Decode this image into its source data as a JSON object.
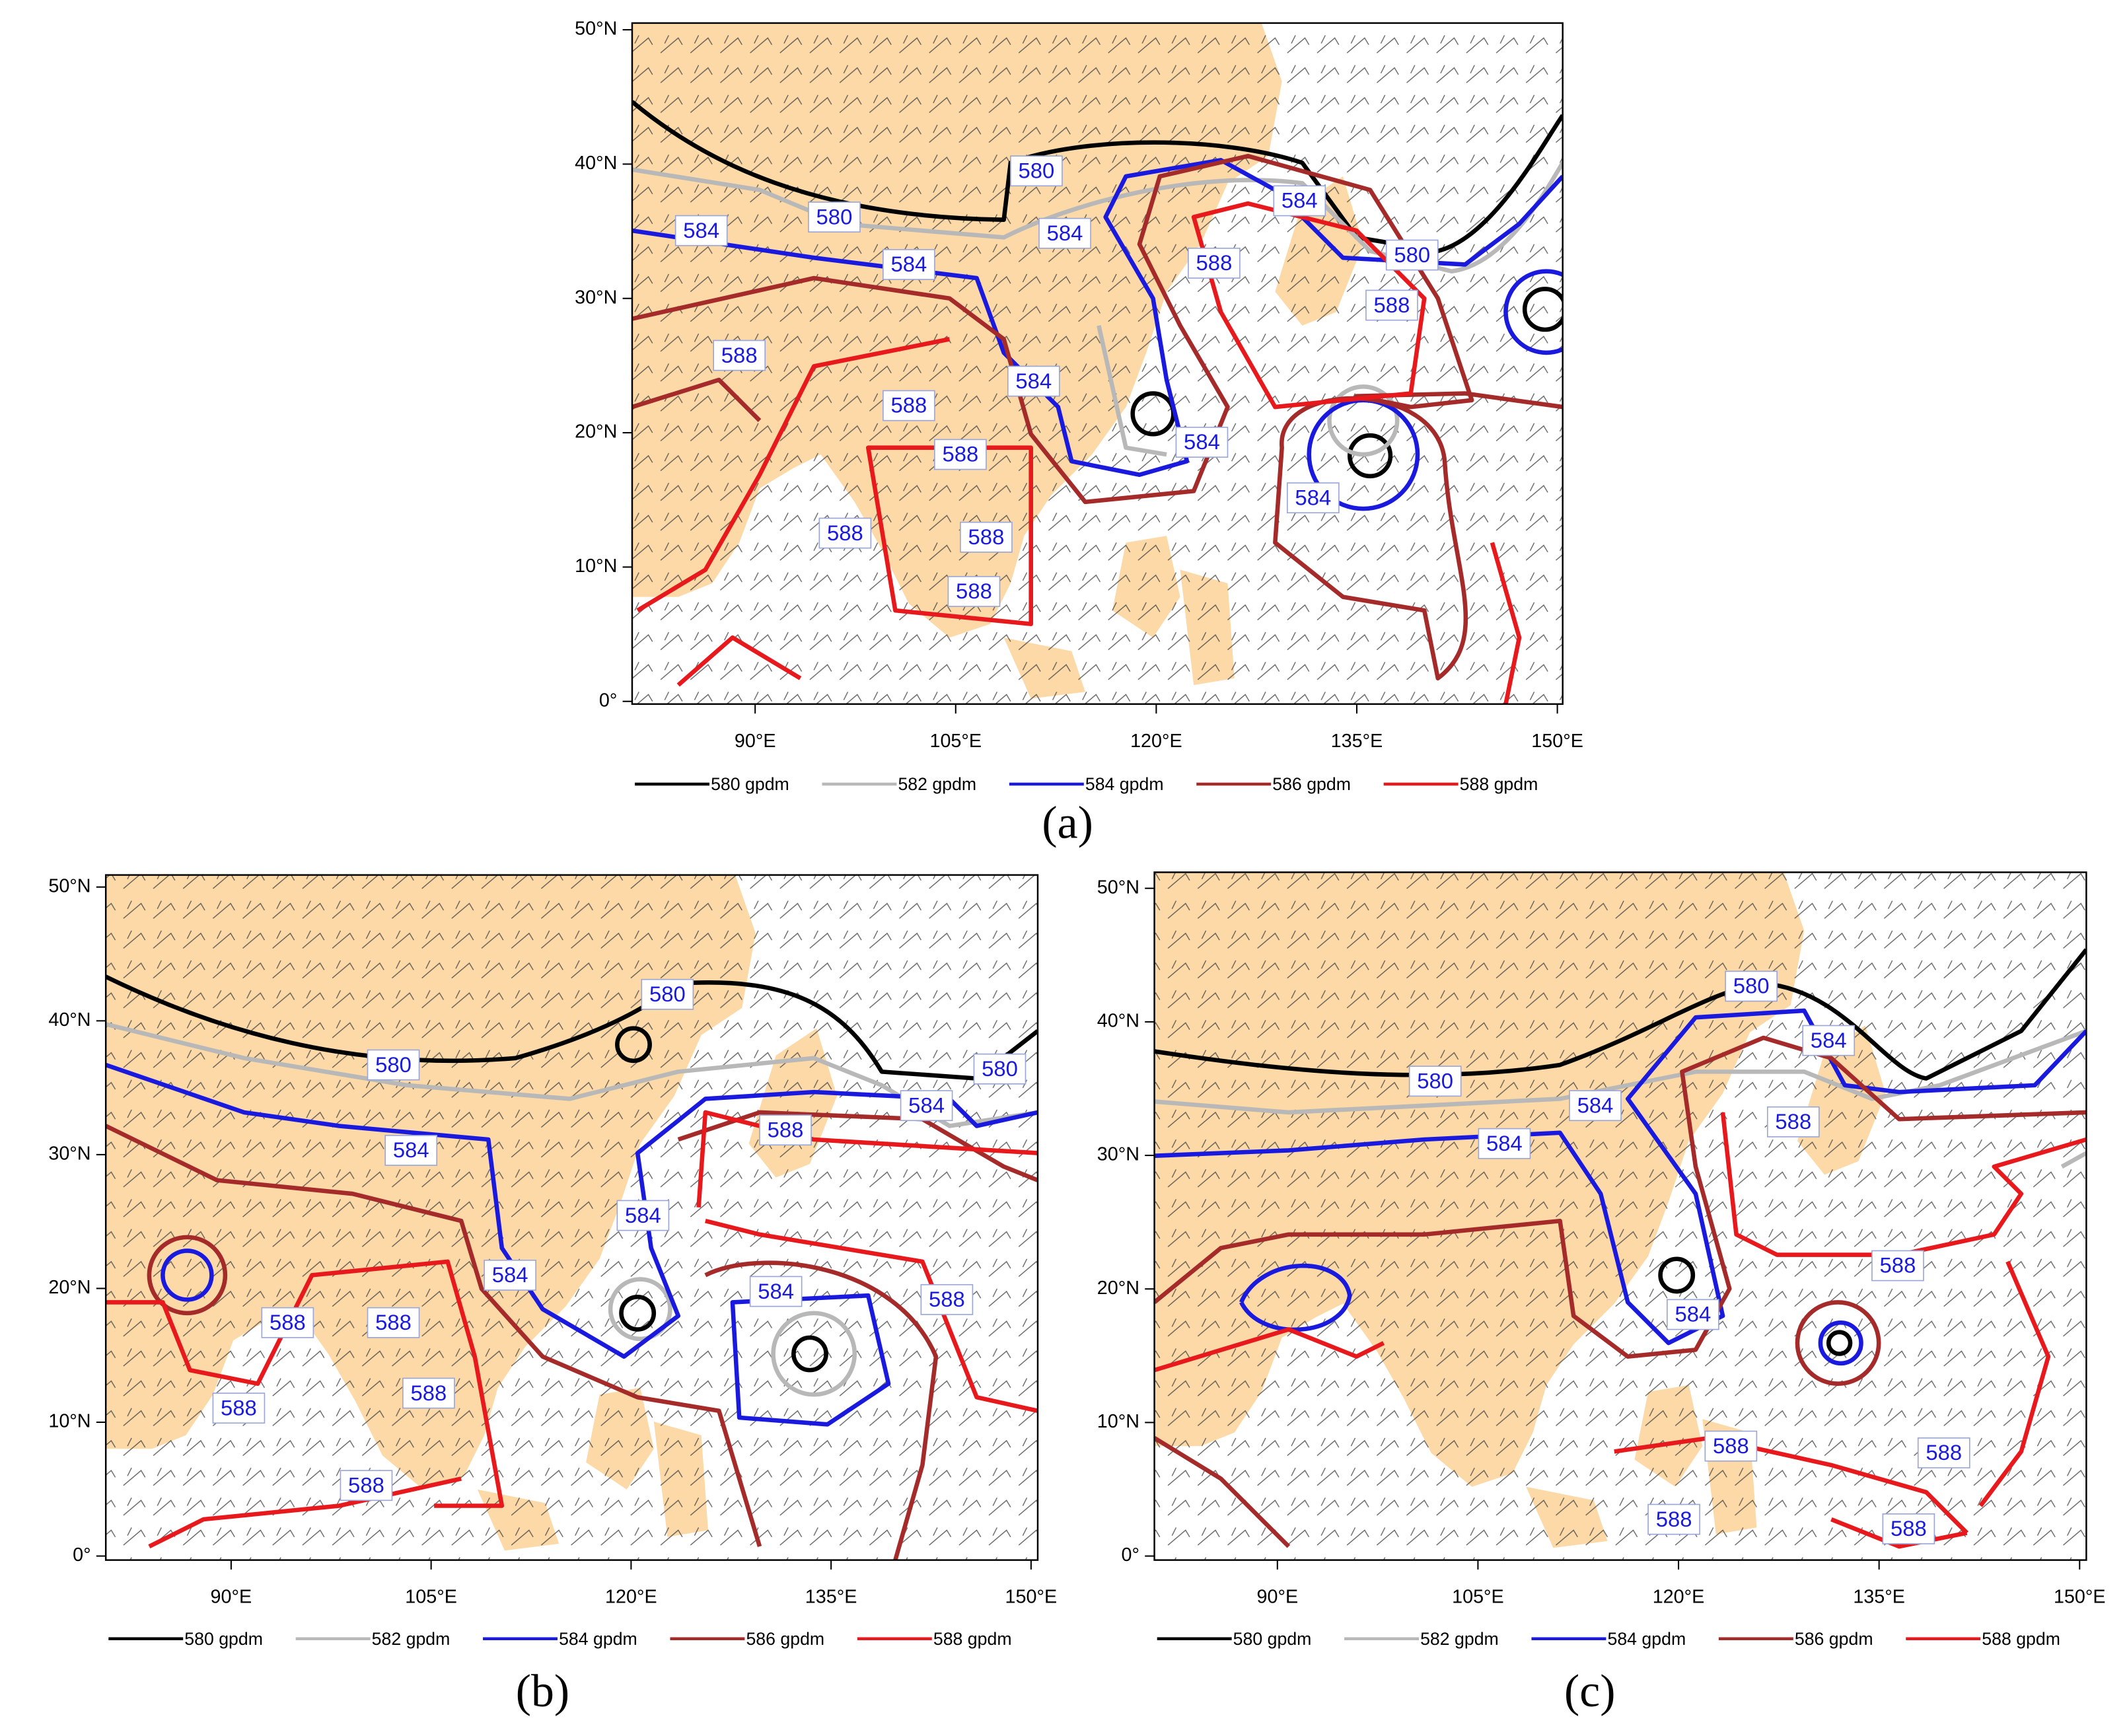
{
  "panels": [
    {
      "label": "(a)",
      "xlim": [
        80.8,
        150.4
      ],
      "ylim": [
        -0.2,
        50.5
      ],
      "xticks": [
        {
          "value": 90,
          "label": "90°E"
        },
        {
          "value": 105,
          "label": "105°E"
        },
        {
          "value": 120,
          "label": "120°E"
        },
        {
          "value": 135,
          "label": "135°E"
        },
        {
          "value": 150,
          "label": "150°E"
        }
      ],
      "yticks": [
        {
          "value": 0,
          "label": "0°"
        },
        {
          "value": 10,
          "label": "10°N"
        },
        {
          "value": 20,
          "label": "20°N"
        },
        {
          "value": 30,
          "label": "30°N"
        },
        {
          "value": 40,
          "label": "40°N"
        },
        {
          "value": 50,
          "label": "50°N"
        }
      ],
      "contour_labels": [
        580,
        580,
        584,
        584,
        584,
        584,
        580,
        588,
        588,
        588,
        584,
        588,
        588,
        584,
        584,
        588,
        588,
        588
      ]
    },
    {
      "label": "(b)",
      "xlim": [
        80.6,
        150.5
      ],
      "ylim": [
        -0.3,
        50.9
      ],
      "xticks": [
        {
          "value": 90,
          "label": "90°E"
        },
        {
          "value": 105,
          "label": "105°E"
        },
        {
          "value": 120,
          "label": "120°E"
        },
        {
          "value": 135,
          "label": "135°E"
        },
        {
          "value": 150,
          "label": "150°E"
        }
      ],
      "yticks": [
        {
          "value": 0,
          "label": "0°"
        },
        {
          "value": 10,
          "label": "10°N"
        },
        {
          "value": 20,
          "label": "20°N"
        },
        {
          "value": 30,
          "label": "30°N"
        },
        {
          "value": 40,
          "label": "40°N"
        },
        {
          "value": 50,
          "label": "50°N"
        }
      ],
      "contour_labels": [
        580,
        580,
        580,
        584,
        588,
        584,
        584,
        584,
        584,
        588,
        588,
        588,
        588,
        588,
        588
      ]
    },
    {
      "label": "(c)",
      "xlim": [
        80.8,
        150.5
      ],
      "ylim": [
        -0.3,
        51.2
      ],
      "xticks": [
        {
          "value": 90,
          "label": "90°E"
        },
        {
          "value": 105,
          "label": "105°E"
        },
        {
          "value": 120,
          "label": "120°E"
        },
        {
          "value": 135,
          "label": "135°E"
        },
        {
          "value": 150,
          "label": "150°E"
        }
      ],
      "yticks": [
        {
          "value": 0,
          "label": "0°"
        },
        {
          "value": 10,
          "label": "10°N"
        },
        {
          "value": 20,
          "label": "20°N"
        },
        {
          "value": 30,
          "label": "30°N"
        },
        {
          "value": 40,
          "label": "40°N"
        },
        {
          "value": 50,
          "label": "50°N"
        }
      ],
      "contour_labels": [
        580,
        584,
        580,
        588,
        584,
        584,
        588,
        584,
        588,
        588,
        588,
        588
      ]
    }
  ],
  "legend": [
    {
      "name": "580 gpdm",
      "color": "#000000"
    },
    {
      "name": "582 gpdm",
      "color": "#b8b8b8"
    },
    {
      "name": "584 gpdm",
      "color": "#1a1adf"
    },
    {
      "name": "586 gpdm",
      "color": "#a52a2a"
    },
    {
      "name": "588 gpdm",
      "color": "#e8191c"
    }
  ]
}
